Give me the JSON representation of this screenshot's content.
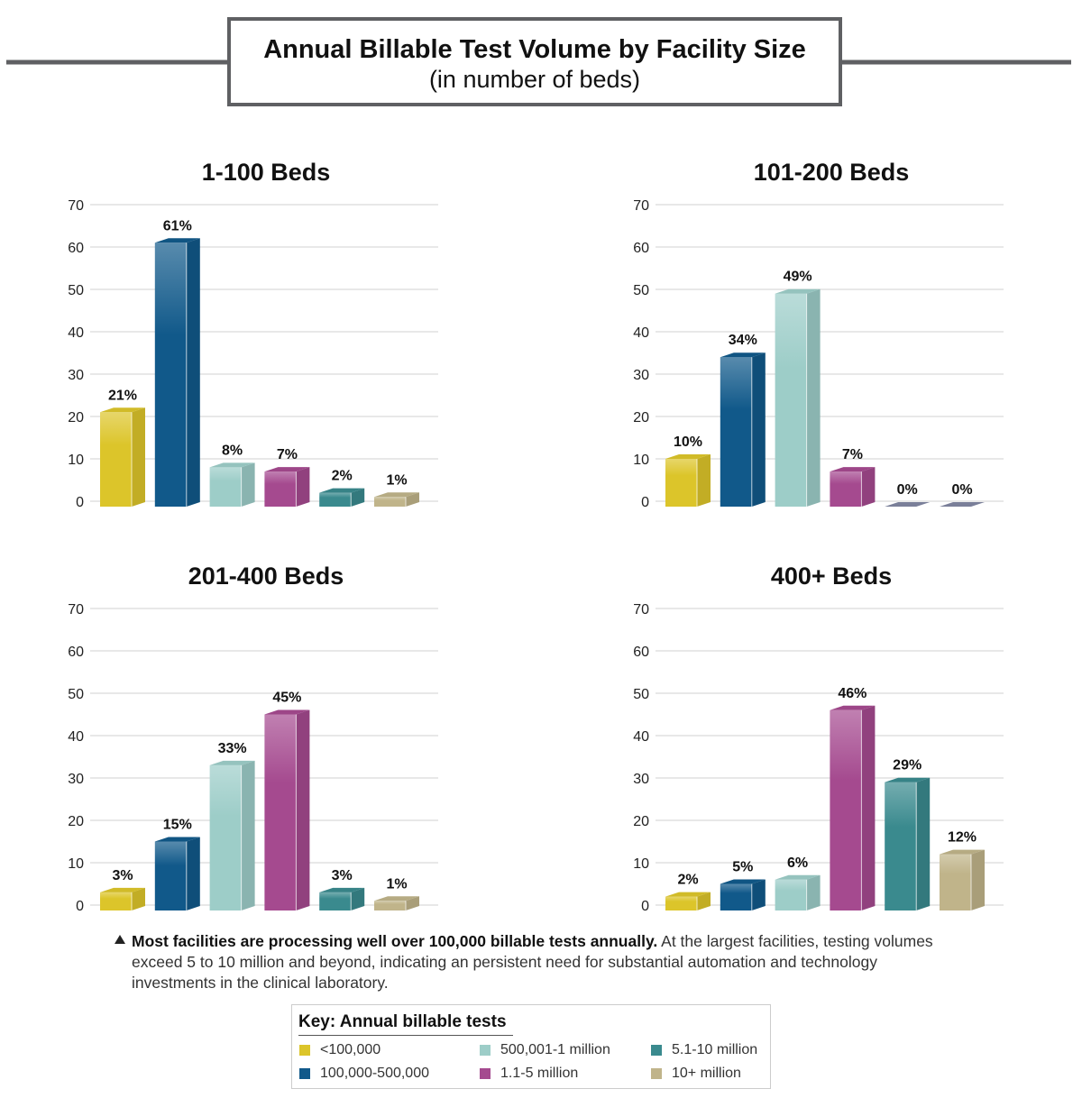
{
  "header": {
    "title": "Annual Billable Test Volume by Facility Size",
    "subtitle": "(in number of beds)"
  },
  "chart_data": [
    {
      "type": "bar",
      "title": "1-100 Beds",
      "categories": [
        "<100,000",
        "100,000-500,000",
        "500,001-1 million",
        "1.1-5 million",
        "5.1-10 million",
        "10+ million"
      ],
      "values": [
        21,
        61,
        8,
        7,
        2,
        1
      ],
      "data_labels": [
        "21%",
        "61%",
        "8%",
        "7%",
        "2%",
        "1%"
      ],
      "ylim": [
        0,
        70
      ],
      "yticks": [
        0,
        10,
        20,
        30,
        40,
        50,
        60,
        70
      ],
      "grid": true
    },
    {
      "type": "bar",
      "title": "101-200 Beds",
      "categories": [
        "<100,000",
        "100,000-500,000",
        "500,001-1 million",
        "1.1-5 million",
        "5.1-10 million",
        "10+ million"
      ],
      "values": [
        10,
        34,
        49,
        7,
        0,
        0
      ],
      "data_labels": [
        "10%",
        "34%",
        "49%",
        "7%",
        "0%",
        "0%"
      ],
      "ylim": [
        0,
        70
      ],
      "yticks": [
        0,
        10,
        20,
        30,
        40,
        50,
        60,
        70
      ],
      "grid": true
    },
    {
      "type": "bar",
      "title": "201-400 Beds",
      "categories": [
        "<100,000",
        "100,000-500,000",
        "500,001-1 million",
        "1.1-5 million",
        "5.1-10 million",
        "10+ million"
      ],
      "values": [
        3,
        15,
        33,
        45,
        3,
        1
      ],
      "data_labels": [
        "3%",
        "15%",
        "33%",
        "45%",
        "3%",
        "1%"
      ],
      "ylim": [
        0,
        70
      ],
      "yticks": [
        0,
        10,
        20,
        30,
        40,
        50,
        60,
        70
      ],
      "grid": true
    },
    {
      "type": "bar",
      "title": "400+ Beds",
      "categories": [
        "<100,000",
        "100,000-500,000",
        "500,001-1 million",
        "1.1-5 million",
        "5.1-10 million",
        "10+ million"
      ],
      "values": [
        2,
        5,
        6,
        46,
        29,
        12
      ],
      "data_labels": [
        "2%",
        "5%",
        "6%",
        "46%",
        "29%",
        "12%"
      ],
      "ylim": [
        0,
        70
      ],
      "yticks": [
        0,
        10,
        20,
        30,
        40,
        50,
        60,
        70
      ],
      "grid": true
    }
  ],
  "colors": [
    "#dcc52a",
    "#11598a",
    "#9dcdc8",
    "#a54a8f",
    "#3a8a8e",
    "#c0b48a"
  ],
  "zero_color": "#7a7f99",
  "caption": {
    "bold": "Most facilities are processing well over 100,000 billable tests annually.",
    "text": " At the largest facilities, testing volumes exceed 5 to 10 million and beyond, indicating an persistent need for substantial automation and technology investments in the clinical laboratory."
  },
  "key": {
    "title": "Key: Annual billable tests",
    "items": [
      "<100,000",
      "100,000-500,000",
      "500,001-1 million",
      "1.1-5 million",
      "5.1-10 million",
      "10+ million"
    ]
  }
}
